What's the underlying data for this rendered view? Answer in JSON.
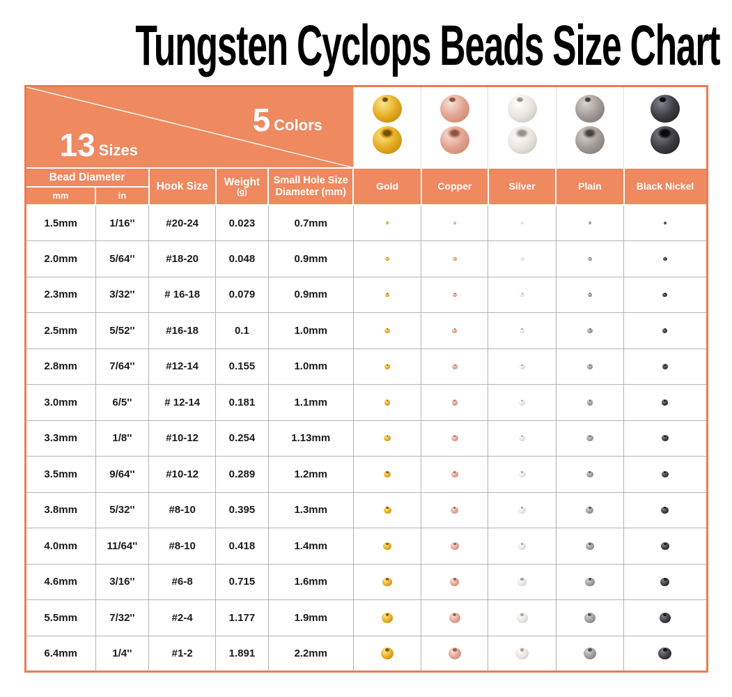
{
  "title": "Tungsten Cyclops Beads Size Chart",
  "banner": {
    "sizes_count": "13",
    "sizes_label": "Sizes",
    "colors_count": "5",
    "colors_label": "Colors"
  },
  "table": {
    "headers": {
      "bead_diameter": "Bead Diameter",
      "mm": "mm",
      "in": "in",
      "hook_size": "Hook Size",
      "weight": "Weight",
      "weight_unit": "(g)",
      "small_hole": "Small Hole Size Diameter (mm)"
    },
    "color_columns": [
      {
        "name": "Gold",
        "light": "#FBE98E",
        "base": "#E7AE25",
        "dark": "#B77C0C",
        "hole": "#6e4f08"
      },
      {
        "name": "Copper",
        "light": "#F8E3DA",
        "base": "#E2A493",
        "dark": "#C47B66",
        "hole": "#8a5243"
      },
      {
        "name": "Silver",
        "light": "#FFFFFF",
        "base": "#EAE6E0",
        "dark": "#C2BCB4",
        "hole": "#98928a"
      },
      {
        "name": "Plain",
        "light": "#D8D5D2",
        "base": "#A39D99",
        "dark": "#716C68",
        "hole": "#454240"
      },
      {
        "name": "Black Nickel",
        "light": "#84848C",
        "base": "#3F3F45",
        "dark": "#141418",
        "hole": "#0a0a0e"
      }
    ],
    "rows": [
      {
        "mm": "1.5mm",
        "in": "1/16''",
        "hook": "#20-24",
        "weight": "0.023",
        "hole": "0.7mm",
        "mm_value": 1.5
      },
      {
        "mm": "2.0mm",
        "in": "5/64''",
        "hook": "#18-20",
        "weight": "0.048",
        "hole": "0.9mm",
        "mm_value": 2.0
      },
      {
        "mm": "2.3mm",
        "in": "3/32''",
        "hook": "# 16-18",
        "weight": "0.079",
        "hole": "0.9mm",
        "mm_value": 2.3
      },
      {
        "mm": "2.5mm",
        "in": "5/52''",
        "hook": "#16-18",
        "weight": "0.1",
        "hole": "1.0mm",
        "mm_value": 2.5
      },
      {
        "mm": "2.8mm",
        "in": "7/64''",
        "hook": "#12-14",
        "weight": "0.155",
        "hole": "1.0mm",
        "mm_value": 2.8
      },
      {
        "mm": "3.0mm",
        "in": "6/5''",
        "hook": "# 12-14",
        "weight": "0.181",
        "hole": "1.1mm",
        "mm_value": 3.0
      },
      {
        "mm": "3.3mm",
        "in": "1/8''",
        "hook": "#10-12",
        "weight": "0.254",
        "hole": "1.13mm",
        "mm_value": 3.3
      },
      {
        "mm": "3.5mm",
        "in": "9/64''",
        "hook": "#10-12",
        "weight": "0.289",
        "hole": "1.2mm",
        "mm_value": 3.5
      },
      {
        "mm": "3.8mm",
        "in": "5/32''",
        "hook": "#8-10",
        "weight": "0.395",
        "hole": "1.3mm",
        "mm_value": 3.8
      },
      {
        "mm": "4.0mm",
        "in": "11/64''",
        "hook": "#8-10",
        "weight": "0.418",
        "hole": "1.4mm",
        "mm_value": 4.0
      },
      {
        "mm": "4.6mm",
        "in": "3/16''",
        "hook": "#6-8",
        "weight": "0.715",
        "hole": "1.6mm",
        "mm_value": 4.6
      },
      {
        "mm": "5.5mm",
        "in": "7/32''",
        "hook": "#2-4",
        "weight": "1.177",
        "hole": "1.9mm",
        "mm_value": 5.5
      },
      {
        "mm": "6.4mm",
        "in": "1/4''",
        "hook": "#1-2",
        "weight": "1.891",
        "hole": "2.2mm",
        "mm_value": 6.4
      }
    ]
  },
  "colors": {
    "accent_orange": "#EE8960",
    "border_orange": "#EA7C4F",
    "grid_gray": "#B3B3B3",
    "title_black": "#000000"
  },
  "chart_data": {
    "type": "table",
    "title": "Tungsten Cyclops Beads Size Chart",
    "sizes_count": 13,
    "colors_count": 5,
    "columns": [
      "Bead Diameter mm",
      "Bead Diameter in",
      "Hook Size",
      "Weight (g)",
      "Small Hole Size Diameter (mm)"
    ],
    "color_options": [
      "Gold",
      "Copper",
      "Silver",
      "Plain",
      "Black Nickel"
    ],
    "rows": [
      [
        "1.5mm",
        "1/16''",
        "#20-24",
        "0.023",
        "0.7mm"
      ],
      [
        "2.0mm",
        "5/64''",
        "#18-20",
        "0.048",
        "0.9mm"
      ],
      [
        "2.3mm",
        "3/32''",
        "# 16-18",
        "0.079",
        "0.9mm"
      ],
      [
        "2.5mm",
        "5/52''",
        "#16-18",
        "0.1",
        "1.0mm"
      ],
      [
        "2.8mm",
        "7/64''",
        "#12-14",
        "0.155",
        "1.0mm"
      ],
      [
        "3.0mm",
        "6/5''",
        "# 12-14",
        "0.181",
        "1.1mm"
      ],
      [
        "3.3mm",
        "1/8''",
        "#10-12",
        "0.254",
        "1.13mm"
      ],
      [
        "3.5mm",
        "9/64''",
        "#10-12",
        "0.289",
        "1.2mm"
      ],
      [
        "3.8mm",
        "5/32''",
        "#8-10",
        "0.395",
        "1.3mm"
      ],
      [
        "4.0mm",
        "11/64''",
        "#8-10",
        "0.418",
        "1.4mm"
      ],
      [
        "4.6mm",
        "3/16''",
        "#6-8",
        "0.715",
        "1.6mm"
      ],
      [
        "5.5mm",
        "7/32''",
        "#2-4",
        "1.177",
        "1.9mm"
      ],
      [
        "6.4mm",
        "1/4''",
        "#1-2",
        "1.891",
        "2.2mm"
      ]
    ]
  }
}
